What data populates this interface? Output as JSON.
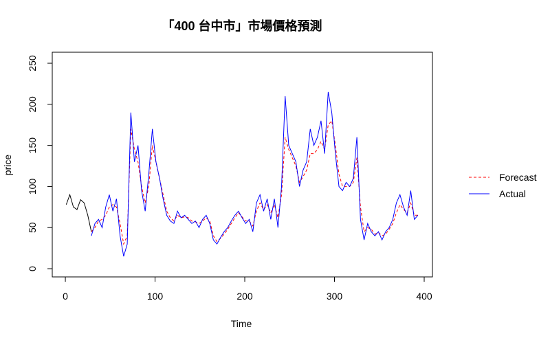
{
  "chart_data": {
    "type": "line",
    "title": "「400 台中市」市場價格預測",
    "x_label": "Time",
    "y_label": "price",
    "xlim": [
      -14.6,
      409.2
    ],
    "ylim": [
      -10,
      263.4
    ],
    "xticks": [
      0,
      100,
      200,
      300,
      400
    ],
    "yticks": [
      0,
      50,
      100,
      150,
      200,
      250
    ],
    "legend": "right",
    "series": [
      {
        "color": "#000000",
        "linestyle": "solid",
        "x": [
          1,
          5,
          9,
          13,
          17,
          21,
          25,
          29
        ],
        "values": [
          78,
          90,
          75,
          72,
          84,
          80,
          65,
          45
        ]
      },
      {
        "name": "Forecast",
        "color": "#ff0000",
        "linestyle": "dashed",
        "x": [
          29,
          33,
          37,
          41,
          45,
          49,
          53,
          57,
          61,
          65,
          69,
          73,
          77,
          81,
          85,
          89,
          93,
          97,
          101,
          105,
          109,
          113,
          117,
          121,
          125,
          129,
          133,
          137,
          141,
          145,
          149,
          153,
          157,
          161,
          165,
          169,
          173,
          177,
          181,
          185,
          189,
          193,
          197,
          201,
          205,
          209,
          213,
          217,
          221,
          225,
          229,
          233,
          237,
          241,
          245,
          249,
          253,
          257,
          261,
          265,
          269,
          273,
          277,
          281,
          285,
          289,
          293,
          297,
          301,
          305,
          309,
          313,
          317,
          321,
          325,
          329,
          333,
          337,
          341,
          345,
          349,
          353,
          357,
          361,
          365,
          369,
          373,
          377,
          381,
          385,
          389,
          393
        ],
        "values": [
          45,
          50,
          58,
          60,
          65,
          75,
          78,
          75,
          55,
          30,
          40,
          170,
          145,
          130,
          100,
          80,
          100,
          150,
          130,
          110,
          90,
          70,
          62,
          58,
          65,
          62,
          63,
          62,
          58,
          57,
          55,
          58,
          62,
          58,
          40,
          33,
          37,
          42,
          48,
          55,
          62,
          68,
          63,
          58,
          58,
          52,
          70,
          80,
          72,
          78,
          68,
          78,
          62,
          90,
          160,
          145,
          135,
          125,
          105,
          112,
          120,
          140,
          140,
          145,
          155,
          145,
          175,
          180,
          150,
          115,
          100,
          100,
          100,
          105,
          135,
          75,
          45,
          50,
          48,
          42,
          44,
          40,
          42,
          48,
          55,
          68,
          78,
          72,
          68,
          80,
          65,
          65
        ]
      },
      {
        "name": "Actual",
        "color": "#0000ff",
        "linestyle": "solid",
        "x": [
          29,
          33,
          37,
          41,
          45,
          49,
          53,
          57,
          61,
          65,
          69,
          73,
          77,
          81,
          85,
          89,
          93,
          97,
          101,
          105,
          109,
          113,
          117,
          121,
          125,
          129,
          133,
          137,
          141,
          145,
          149,
          153,
          157,
          161,
          165,
          169,
          173,
          177,
          181,
          185,
          189,
          193,
          197,
          201,
          205,
          209,
          213,
          217,
          221,
          225,
          229,
          233,
          237,
          241,
          245,
          249,
          253,
          257,
          261,
          265,
          269,
          273,
          277,
          281,
          285,
          289,
          293,
          297,
          301,
          305,
          309,
          313,
          317,
          321,
          325,
          329,
          333,
          337,
          341,
          345,
          349,
          353,
          357,
          361,
          365,
          369,
          373,
          377,
          381,
          385,
          389,
          393
        ],
        "values": [
          40,
          55,
          60,
          50,
          75,
          90,
          70,
          85,
          40,
          15,
          30,
          190,
          130,
          150,
          95,
          70,
          115,
          170,
          130,
          110,
          85,
          65,
          58,
          55,
          70,
          62,
          65,
          60,
          55,
          58,
          50,
          60,
          65,
          55,
          35,
          30,
          38,
          45,
          50,
          58,
          65,
          70,
          62,
          55,
          60,
          45,
          80,
          90,
          70,
          85,
          60,
          85,
          50,
          100,
          210,
          150,
          140,
          130,
          100,
          120,
          130,
          170,
          150,
          160,
          180,
          140,
          215,
          190,
          140,
          100,
          95,
          105,
          100,
          110,
          160,
          60,
          35,
          55,
          45,
          40,
          45,
          35,
          45,
          50,
          60,
          80,
          90,
          75,
          65,
          95,
          60,
          65
        ]
      }
    ]
  }
}
